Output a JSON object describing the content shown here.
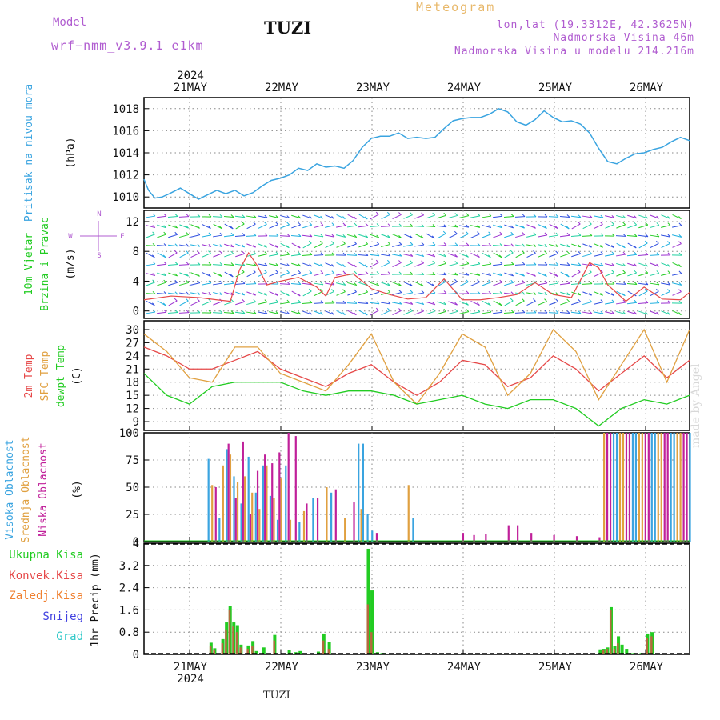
{
  "header": {
    "model_label": "Model",
    "model_name": "wrf−nmm_v3.9.1  e1km",
    "station": "TUZI",
    "meteogram": "Meteogram",
    "lonlat": "lon,lat (19.3312E, 42.3625N)",
    "elevation": "Nadmorska Visina 46m",
    "model_elevation": "Nadmorska Visina u modelu 214.216m"
  },
  "footer": {
    "station": "TUZI",
    "made_by": "made by Angel"
  },
  "colors": {
    "pressure": "#3aa4e0",
    "wind_label": "#22cc22",
    "wind_axis": "#b05cd0",
    "temp2m": "#e64848",
    "sfc": "#e0a040",
    "dewpt": "#22cc22",
    "high_cloud": "#3aa4e0",
    "mid_cloud": "#e0a040",
    "low_cloud": "#c0209a",
    "total_precip": "#22cc22",
    "conv_precip": "#e64848",
    "freezing": "#f08030",
    "snow": "#4040e0",
    "hail": "#30c8c8"
  },
  "chart_data": [
    {
      "type": "line",
      "panel": "pressure",
      "ylabel_lines": [
        "Pritisak na nivou mora"
      ],
      "unit": "(hPa)",
      "ylim": [
        1009,
        1019
      ],
      "yticks": [
        "1010",
        "1012",
        "1014",
        "1016",
        "1018"
      ],
      "x_categories": [
        "21MAY",
        "22MAY",
        "23MAY",
        "24MAY",
        "25MAY",
        "26MAY"
      ],
      "year": "2024",
      "grid": true,
      "series": [
        {
          "x": [
            0,
            0.05,
            0.12,
            0.2,
            0.28,
            0.4,
            0.5,
            0.6,
            0.7,
            0.8,
            0.9,
            1.0,
            1.1,
            1.2,
            1.3,
            1.4,
            1.5,
            1.6,
            1.7,
            1.8,
            1.9,
            2.0,
            2.1,
            2.2,
            2.3,
            2.4,
            2.5,
            2.6,
            2.7,
            2.8,
            2.9,
            3.0,
            3.1,
            3.2,
            3.3,
            3.4,
            3.5,
            3.6,
            3.7,
            3.8,
            3.9,
            4.0,
            4.1,
            4.2,
            4.3,
            4.4,
            4.5,
            4.6,
            4.7,
            4.8,
            4.9,
            5.0,
            5.1,
            5.2,
            5.3,
            5.4,
            5.5,
            5.6,
            5.7,
            5.8,
            5.9,
            6.0
          ],
          "values": [
            1011.6,
            1010.6,
            1009.9,
            1010.0,
            1010.3,
            1010.8,
            1010.3,
            1009.8,
            1010.2,
            1010.6,
            1010.3,
            1010.6,
            1010.1,
            1010.4,
            1011.0,
            1011.5,
            1011.7,
            1012.0,
            1012.6,
            1012.4,
            1013.0,
            1012.7,
            1012.8,
            1012.6,
            1013.3,
            1014.5,
            1015.3,
            1015.5,
            1015.5,
            1015.8,
            1015.3,
            1015.4,
            1015.3,
            1015.4,
            1016.2,
            1016.9,
            1017.1,
            1017.2,
            1017.2,
            1017.5,
            1018.0,
            1017.7,
            1016.8,
            1016.5,
            1017.0,
            1017.8,
            1017.2,
            1016.8,
            1016.9,
            1016.6,
            1015.8,
            1014.4,
            1013.2,
            1013.0,
            1013.5,
            1013.9,
            1014.0,
            1014.3,
            1014.5,
            1015.0,
            1015.4,
            1015.1
          ]
        }
      ]
    },
    {
      "type": "line",
      "panel": "wind",
      "ylabel_lines": [
        "10m Vjetar",
        "Brzina i Pravac"
      ],
      "unit": "(m/s)",
      "compass": [
        "N",
        "E",
        "W",
        "S"
      ],
      "ylim": [
        -1,
        13.5
      ],
      "yticks": [
        "0",
        "4",
        "8",
        "12"
      ],
      "grid": true,
      "series": [
        {
          "name": "wind speed",
          "x": [
            0,
            0.3,
            0.6,
            0.8,
            0.95,
            1.05,
            1.15,
            1.25,
            1.35,
            1.5,
            1.7,
            1.9,
            2.0,
            2.1,
            2.3,
            2.5,
            2.7,
            2.9,
            3.1,
            3.3,
            3.5,
            3.7,
            3.9,
            4.1,
            4.3,
            4.5,
            4.7,
            4.9,
            5.0,
            5.1,
            5.3,
            5.5,
            5.7,
            5.9,
            6.0
          ],
          "values": [
            1.5,
            2.0,
            1.8,
            1.5,
            1.3,
            5.5,
            7.8,
            6.0,
            3.5,
            4.0,
            4.5,
            3.2,
            2.0,
            4.5,
            5.0,
            3.0,
            2.2,
            1.6,
            1.8,
            4.3,
            1.5,
            1.5,
            1.8,
            2.2,
            3.8,
            2.2,
            1.8,
            6.5,
            5.8,
            3.5,
            1.3,
            3.2,
            1.6,
            1.5,
            2.5
          ]
        }
      ]
    },
    {
      "type": "line",
      "panel": "temperature",
      "ylabel_lines": [
        "2m Temp",
        "SFC Temp",
        "dewpt Temp"
      ],
      "unit": "(C)",
      "ylim": [
        7,
        32
      ],
      "yticks": [
        "9",
        "12",
        "15",
        "18",
        "21",
        "24",
        "27",
        "30"
      ],
      "grid": true,
      "series": [
        {
          "name": "2m Temp",
          "x": [
            0,
            0.25,
            0.5,
            0.75,
            1.0,
            1.25,
            1.5,
            1.75,
            2.0,
            2.25,
            2.5,
            2.75,
            3.0,
            3.25,
            3.5,
            3.75,
            4.0,
            4.25,
            4.5,
            4.75,
            5.0,
            5.25,
            5.5,
            5.75,
            6.0
          ],
          "values": [
            26,
            24,
            21,
            21,
            23,
            25,
            21,
            19,
            17,
            20,
            22,
            18,
            15,
            18,
            23,
            22,
            17,
            19,
            24,
            21,
            16,
            20,
            24,
            19,
            23
          ]
        },
        {
          "name": "SFC Temp",
          "x": [
            0,
            0.25,
            0.5,
            0.75,
            1.0,
            1.25,
            1.5,
            1.75,
            2.0,
            2.25,
            2.5,
            2.75,
            3.0,
            3.25,
            3.5,
            3.75,
            4.0,
            4.25,
            4.5,
            4.75,
            5.0,
            5.25,
            5.5,
            5.75,
            6.0
          ],
          "values": [
            29,
            25,
            19,
            18,
            26,
            26,
            20,
            18,
            16,
            22,
            29,
            18,
            13,
            20,
            29,
            26,
            15,
            20,
            30,
            25,
            14,
            22,
            30,
            18,
            30
          ]
        },
        {
          "name": "dewpt Temp",
          "x": [
            0,
            0.25,
            0.5,
            0.75,
            1.0,
            1.25,
            1.5,
            1.75,
            2.0,
            2.25,
            2.5,
            2.75,
            3.0,
            3.25,
            3.5,
            3.75,
            4.0,
            4.25,
            4.5,
            4.75,
            5.0,
            5.25,
            5.5,
            5.75,
            6.0
          ],
          "values": [
            20,
            15,
            13,
            17,
            18,
            18,
            18,
            16,
            15,
            16,
            16,
            15,
            13,
            14,
            15,
            13,
            12,
            14,
            14,
            12,
            8,
            12,
            14,
            13,
            15
          ]
        }
      ]
    },
    {
      "type": "bar",
      "panel": "clouds",
      "ylabel_lines": [
        "Visoka Oblacnost",
        "Srednja Oblacnost",
        "Niska Oblacnost"
      ],
      "unit": "(%)",
      "ylim": [
        0,
        100
      ],
      "yticks": [
        "0",
        "25",
        "50",
        "75",
        "100"
      ],
      "grid": true,
      "series": [
        {
          "name": "Visoka Oblacnost",
          "x": [
            0.7,
            0.82,
            0.9,
            0.98,
            1.06,
            1.14,
            1.22,
            1.3,
            1.38,
            1.46,
            1.55,
            1.7,
            1.85,
            2.05,
            2.35,
            2.4,
            2.45,
            2.5,
            2.95
          ],
          "values": [
            76,
            22,
            85,
            60,
            35,
            78,
            45,
            70,
            42,
            20,
            70,
            18,
            40,
            45,
            90,
            90,
            25,
            10,
            22
          ]
        },
        {
          "name": "Srednja Oblacnost",
          "x": [
            0.74,
            0.86,
            0.94,
            1.02,
            1.1,
            1.18,
            1.26,
            1.34,
            1.42,
            1.5,
            1.6,
            1.75,
            2.0,
            2.2,
            2.38,
            2.9
          ],
          "values": [
            52,
            70,
            80,
            55,
            60,
            45,
            30,
            70,
            40,
            58,
            20,
            28,
            50,
            22,
            30,
            52
          ]
        },
        {
          "name": "Niska Oblacnost",
          "x": [
            0.78,
            0.92,
            1.0,
            1.08,
            1.16,
            1.24,
            1.32,
            1.4,
            1.48,
            1.58,
            1.66,
            1.78,
            1.9,
            2.1,
            2.3,
            2.55,
            3.5,
            3.62,
            3.75,
            4.0,
            4.1,
            4.25,
            4.5,
            4.75,
            5.0
          ],
          "values": [
            50,
            90,
            40,
            92,
            25,
            65,
            80,
            72,
            82,
            100,
            97,
            35,
            40,
            48,
            36,
            8,
            8,
            6,
            7,
            15,
            15,
            8,
            6,
            5,
            4
          ]
        },
        {
          "name": "high cloud block",
          "x_start": 5.05,
          "x_end": 6.0,
          "values": [
            100
          ]
        }
      ]
    },
    {
      "type": "bar",
      "panel": "precip",
      "ylabel_lines": [
        "1hr Precip (mm)"
      ],
      "legend": [
        "Ukupna Kisa",
        "Konvek.Kisa",
        "Zaledj.Kisa",
        "Snijeg",
        "Grad"
      ],
      "ylim": [
        0,
        4
      ],
      "yticks": [
        "0",
        "0.8",
        "1.6",
        "2.4",
        "3.2",
        "4"
      ],
      "grid": true,
      "series": [
        {
          "name": "Ukupna Kisa",
          "x": [
            0.72,
            0.76,
            0.85,
            0.89,
            0.93,
            0.97,
            1.01,
            1.05,
            1.13,
            1.18,
            1.22,
            1.3,
            1.42,
            1.58,
            1.65,
            1.7,
            1.9,
            1.96,
            2.02,
            2.45,
            2.49,
            2.55,
            2.6,
            2.63,
            5.0,
            5.04,
            5.08,
            5.12,
            5.16,
            5.2,
            5.24,
            5.29,
            5.33,
            5.37,
            5.45,
            5.52,
            5.57
          ],
          "values": [
            0.42,
            0.22,
            0.55,
            1.15,
            1.75,
            1.15,
            1.05,
            0.35,
            0.32,
            0.48,
            0.12,
            0.25,
            0.7,
            0.15,
            0.08,
            0.12,
            0.1,
            0.75,
            0.45,
            3.8,
            2.3,
            0.08,
            0.05,
            0.05,
            0.18,
            0.2,
            0.25,
            1.7,
            0.3,
            0.65,
            0.35,
            0.2,
            0.05,
            0.05,
            0.05,
            0.75,
            0.8
          ]
        },
        {
          "name": "Konvek.Kisa",
          "x": [
            0.72,
            0.76,
            0.85,
            0.89,
            0.93,
            0.97,
            1.01,
            1.05,
            1.13,
            1.18,
            1.42,
            1.96,
            2.02,
            2.45,
            2.49,
            5.04,
            5.08,
            5.12,
            5.16,
            5.2,
            5.52,
            5.57
          ],
          "values": [
            0.3,
            0.15,
            0.4,
            0.9,
            1.6,
            1.0,
            0.8,
            0.25,
            0.2,
            0.3,
            0.5,
            0.5,
            0.2,
            1.8,
            0.8,
            0.15,
            0.2,
            1.6,
            0.2,
            0.4,
            0.6,
            0.65
          ]
        }
      ]
    }
  ]
}
